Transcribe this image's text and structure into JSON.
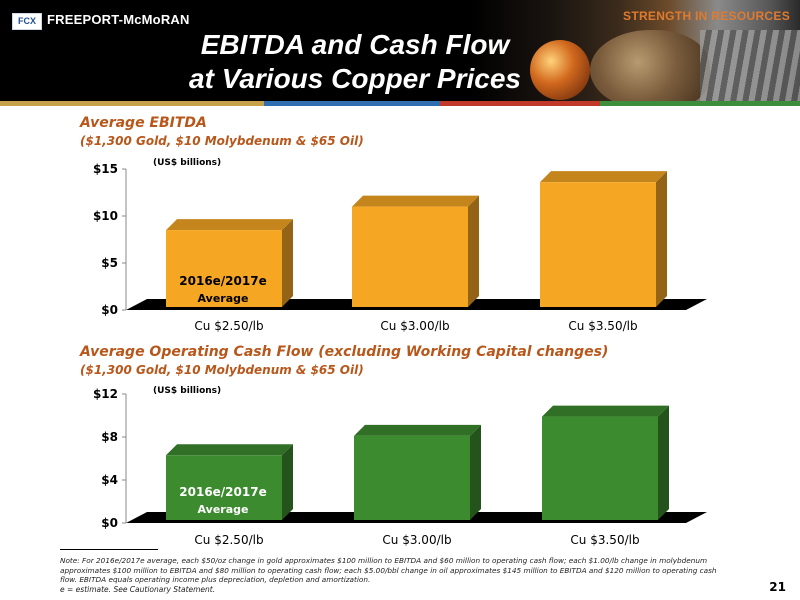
{
  "header": {
    "logo_mark": "FCX",
    "company": "FREEPORT-McMoRAN",
    "tagline": "STRENGTH IN RESOURCES",
    "title_line1": "EBITDA and Cash Flow",
    "title_line2": "at Various Copper Prices"
  },
  "sections": [
    {
      "title": "Average EBITDA",
      "subtitle": "($1,300 Gold, $10 Molybdenum & $65 Oil)",
      "units": "(US$ billions)",
      "annotation_line1": "2016e/2017e",
      "annotation_line2": "Average"
    },
    {
      "title": "Average Operating Cash Flow (excluding Working Capital changes)",
      "subtitle": "($1,300 Gold, $10 Molybdenum & $65 Oil)",
      "units": "(US$ billions)",
      "annotation_line1": "2016e/2017e",
      "annotation_line2": "Average"
    }
  ],
  "chart_data": [
    {
      "type": "bar",
      "title": "Average EBITDA",
      "categories": [
        "Cu $2.50/lb",
        "Cu $3.00/lb",
        "Cu $3.50/lb"
      ],
      "values": [
        8.5,
        11.0,
        13.6
      ],
      "ylim": [
        0,
        15
      ],
      "yticks": [
        0,
        5,
        10,
        15
      ],
      "ytick_labels": [
        "$0",
        "$5",
        "$10",
        "$15"
      ],
      "color": "#f5a623",
      "grid": false
    },
    {
      "type": "bar",
      "title": "Average Operating Cash Flow (excluding Working Capital changes)",
      "categories": [
        "Cu $2.50/lb",
        "Cu $3.00/lb",
        "Cu $3.50/lb"
      ],
      "values": [
        6.3,
        8.1,
        9.9
      ],
      "ylim": [
        0,
        12
      ],
      "yticks": [
        0,
        4,
        8,
        12
      ],
      "ytick_labels": [
        "$0",
        "$4",
        "$8",
        "$12"
      ],
      "color": "#3d8b2f",
      "grid": false
    }
  ],
  "footer": {
    "note": "Note:  For 2016e/2017e average, each $50/oz change in gold approximates $100 million to EBITDA and $60 million to operating cash flow; each $1.00/lb change in molybdenum approximates $100 million to EBITDA and $80 million to operating cash flow; each $5.00/bbl change in oil approximates $145 million to EBITDA and $120 million to operating cash flow. EBITDA equals operating income plus depreciation, depletion and amortization.",
    "estimate": "e = estimate. See Cautionary Statement.",
    "page_number": "21"
  }
}
